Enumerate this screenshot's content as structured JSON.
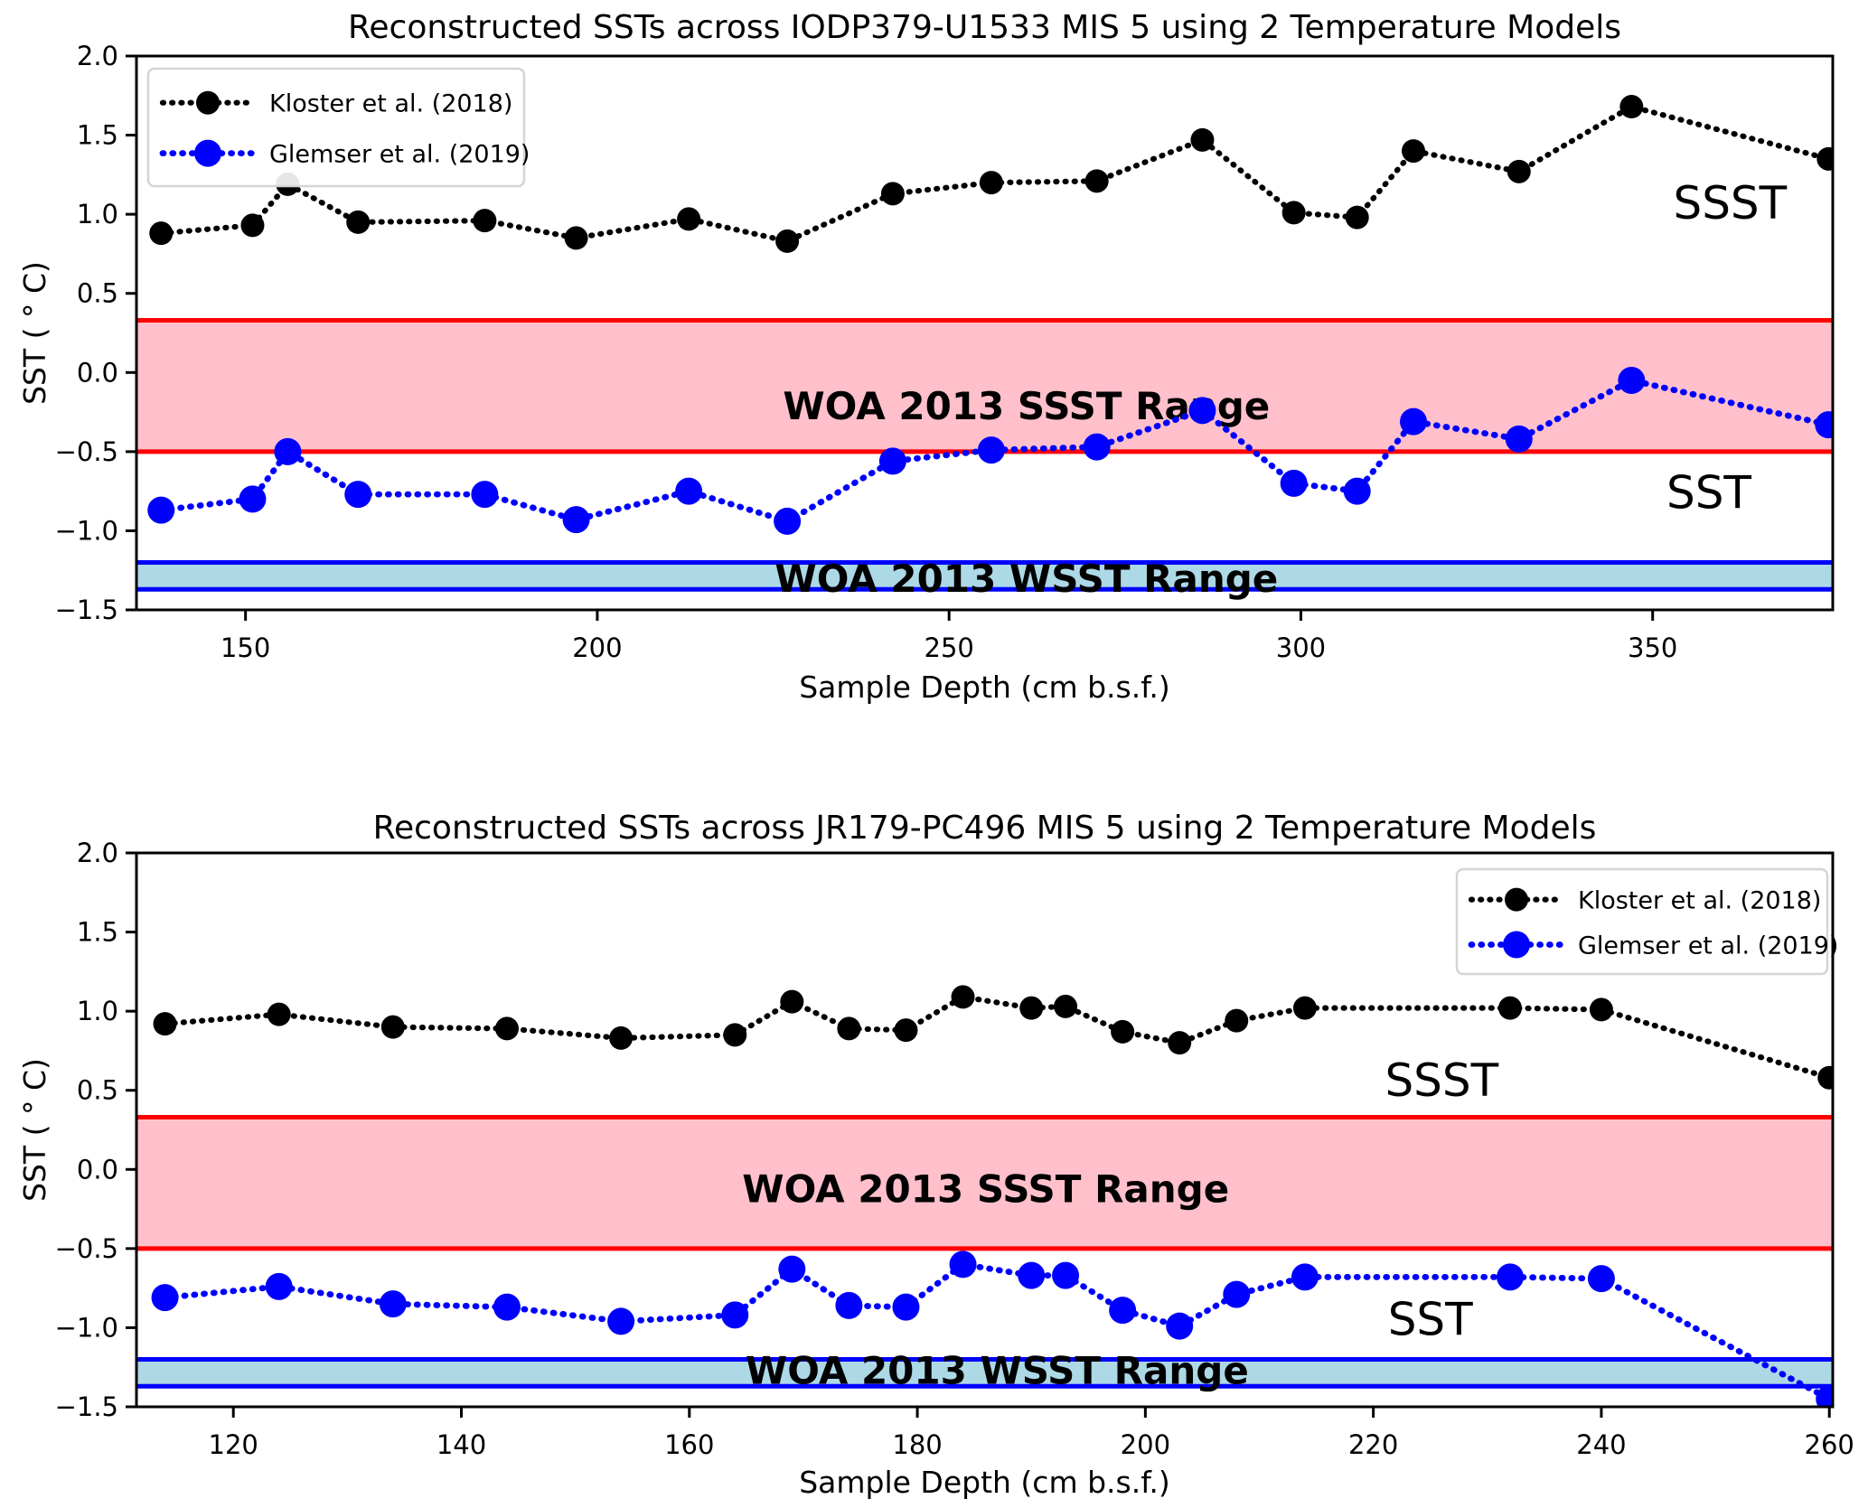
{
  "figure": {
    "background": "#ffffff"
  },
  "colors": {
    "series_kloster": "#000000",
    "series_glemser": "#0000ff",
    "ssst_band_fill": "#ffc0cb",
    "ssst_band_edge": "#ff0000",
    "wsst_band_fill": "#add8e6",
    "wsst_band_edge": "#0000ff",
    "axes": "#000000",
    "legend_border": "#d4d4d4"
  },
  "chart_data": [
    {
      "type": "line",
      "title": "Reconstructed SSTs across IODP379-U1533 MIS 5 using 2 Temperature Models",
      "xlabel": "Sample Depth (cm b.s.f.)",
      "ylabel": "SST ( ° C)",
      "xlim": [
        134.5,
        375.6
      ],
      "ylim": [
        -1.5,
        2.0
      ],
      "xticks": [
        150,
        200,
        250,
        300,
        350
      ],
      "yticks": [
        2.0,
        1.5,
        1.0,
        0.5,
        0.0,
        -0.5,
        -1.0,
        -1.5
      ],
      "grid": false,
      "legend_position": "upper left",
      "x": [
        138,
        151,
        156,
        166,
        184,
        197,
        213,
        227,
        242,
        256,
        271,
        286,
        299,
        308,
        316,
        331,
        347,
        375
      ],
      "series": [
        {
          "name": "Kloster et al. (2018)",
          "color": "#000000",
          "values": [
            0.88,
            0.93,
            1.19,
            0.95,
            0.96,
            0.85,
            0.97,
            0.83,
            1.13,
            1.2,
            1.21,
            1.47,
            1.01,
            0.98,
            1.4,
            1.27,
            1.68,
            1.35
          ],
          "annotation": {
            "text": "SSST",
            "x": 361,
            "y": 1.07
          }
        },
        {
          "name": "Glemser et al. (2019)",
          "color": "#0000ff",
          "values": [
            -0.87,
            -0.8,
            -0.5,
            -0.77,
            -0.77,
            -0.93,
            -0.75,
            -0.94,
            -0.56,
            -0.49,
            -0.47,
            -0.24,
            -0.7,
            -0.75,
            -0.31,
            -0.42,
            -0.05,
            -0.33
          ],
          "annotation": {
            "text": "SST",
            "x": 358,
            "y": -0.76
          }
        }
      ],
      "bands": [
        {
          "name": "ssst",
          "label": "WOA 2013 SSST Range",
          "y_from": -0.5,
          "y_to": 0.33,
          "fill": "#ffc0cb",
          "edge": "#ff0000",
          "label_x": 261,
          "label_y": -0.21
        },
        {
          "name": "wsst",
          "label": "WOA 2013 WSST Range",
          "y_from": -1.37,
          "y_to": -1.2,
          "fill": "#add8e6",
          "edge": "#0000ff",
          "label_x": 261,
          "label_y": -1.3
        }
      ]
    },
    {
      "type": "line",
      "title": "Reconstructed SSTs across JR179-PC496 MIS 5 using 2 Temperature Models",
      "xlabel": "Sample Depth (cm b.s.f.)",
      "ylabel": "SST ( ° C)",
      "xlim": [
        111.5,
        260.3
      ],
      "ylim": [
        -1.5,
        2.0
      ],
      "xticks": [
        120,
        140,
        160,
        180,
        200,
        220,
        240,
        260
      ],
      "yticks": [
        2.0,
        1.5,
        1.0,
        0.5,
        0.0,
        -0.5,
        -1.0,
        -1.5
      ],
      "grid": false,
      "legend_position": "upper right",
      "x": [
        114,
        124,
        134,
        144,
        154,
        164,
        169,
        174,
        179,
        184,
        190,
        193,
        198,
        203,
        208,
        214,
        232,
        240,
        260
      ],
      "series": [
        {
          "name": "Kloster et al. (2018)",
          "color": "#000000",
          "values": [
            0.92,
            0.98,
            0.9,
            0.89,
            0.83,
            0.85,
            1.06,
            0.89,
            0.88,
            1.09,
            1.02,
            1.03,
            0.87,
            0.8,
            0.94,
            1.02,
            1.02,
            1.01,
            0.58
          ],
          "annotation": {
            "text": "SSST",
            "x": 226,
            "y": 0.56
          }
        },
        {
          "name": "Glemser et al. (2019)",
          "color": "#0000ff",
          "values": [
            -0.81,
            -0.74,
            -0.85,
            -0.87,
            -0.96,
            -0.92,
            -0.63,
            -0.86,
            -0.87,
            -0.6,
            -0.67,
            -0.67,
            -0.89,
            -0.99,
            -0.79,
            -0.68,
            -0.68,
            -0.69,
            -1.45
          ],
          "annotation": {
            "text": "SST",
            "x": 225,
            "y": -0.95
          }
        }
      ],
      "bands": [
        {
          "name": "ssst",
          "label": "WOA 2013 SSST Range",
          "y_from": -0.5,
          "y_to": 0.33,
          "fill": "#ffc0cb",
          "edge": "#ff0000",
          "label_x": 186,
          "label_y": -0.12
        },
        {
          "name": "wsst",
          "label": "WOA 2013 WSST Range",
          "y_from": -1.37,
          "y_to": -1.2,
          "fill": "#add8e6",
          "edge": "#0000ff",
          "label_x": 187,
          "label_y": -1.27
        }
      ]
    }
  ]
}
